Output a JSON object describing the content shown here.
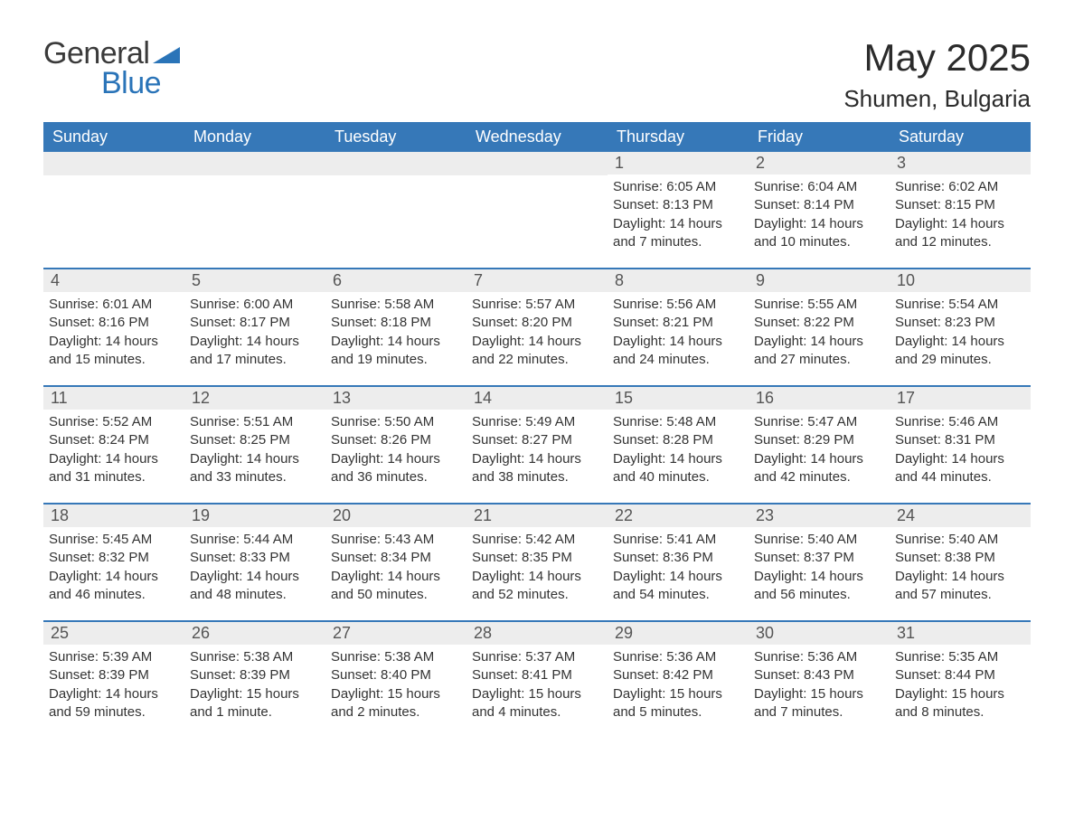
{
  "brand": {
    "part1": "General",
    "part2": "Blue",
    "accent_color": "#2a74b8",
    "text_color": "#3a3a3a"
  },
  "title": "May 2025",
  "location": "Shumen, Bulgaria",
  "colors": {
    "header_bg": "#3678b8",
    "header_text": "#ffffff",
    "daynum_bg": "#ededed",
    "daynum_text": "#555555",
    "body_text": "#333333",
    "week_divider": "#3678b8",
    "page_bg": "#ffffff"
  },
  "days_of_week": [
    "Sunday",
    "Monday",
    "Tuesday",
    "Wednesday",
    "Thursday",
    "Friday",
    "Saturday"
  ],
  "weeks": [
    [
      {
        "n": null
      },
      {
        "n": null
      },
      {
        "n": null
      },
      {
        "n": null
      },
      {
        "n": "1",
        "sunrise": "Sunrise: 6:05 AM",
        "sunset": "Sunset: 8:13 PM",
        "daylight": "Daylight: 14 hours and 7 minutes."
      },
      {
        "n": "2",
        "sunrise": "Sunrise: 6:04 AM",
        "sunset": "Sunset: 8:14 PM",
        "daylight": "Daylight: 14 hours and 10 minutes."
      },
      {
        "n": "3",
        "sunrise": "Sunrise: 6:02 AM",
        "sunset": "Sunset: 8:15 PM",
        "daylight": "Daylight: 14 hours and 12 minutes."
      }
    ],
    [
      {
        "n": "4",
        "sunrise": "Sunrise: 6:01 AM",
        "sunset": "Sunset: 8:16 PM",
        "daylight": "Daylight: 14 hours and 15 minutes."
      },
      {
        "n": "5",
        "sunrise": "Sunrise: 6:00 AM",
        "sunset": "Sunset: 8:17 PM",
        "daylight": "Daylight: 14 hours and 17 minutes."
      },
      {
        "n": "6",
        "sunrise": "Sunrise: 5:58 AM",
        "sunset": "Sunset: 8:18 PM",
        "daylight": "Daylight: 14 hours and 19 minutes."
      },
      {
        "n": "7",
        "sunrise": "Sunrise: 5:57 AM",
        "sunset": "Sunset: 8:20 PM",
        "daylight": "Daylight: 14 hours and 22 minutes."
      },
      {
        "n": "8",
        "sunrise": "Sunrise: 5:56 AM",
        "sunset": "Sunset: 8:21 PM",
        "daylight": "Daylight: 14 hours and 24 minutes."
      },
      {
        "n": "9",
        "sunrise": "Sunrise: 5:55 AM",
        "sunset": "Sunset: 8:22 PM",
        "daylight": "Daylight: 14 hours and 27 minutes."
      },
      {
        "n": "10",
        "sunrise": "Sunrise: 5:54 AM",
        "sunset": "Sunset: 8:23 PM",
        "daylight": "Daylight: 14 hours and 29 minutes."
      }
    ],
    [
      {
        "n": "11",
        "sunrise": "Sunrise: 5:52 AM",
        "sunset": "Sunset: 8:24 PM",
        "daylight": "Daylight: 14 hours and 31 minutes."
      },
      {
        "n": "12",
        "sunrise": "Sunrise: 5:51 AM",
        "sunset": "Sunset: 8:25 PM",
        "daylight": "Daylight: 14 hours and 33 minutes."
      },
      {
        "n": "13",
        "sunrise": "Sunrise: 5:50 AM",
        "sunset": "Sunset: 8:26 PM",
        "daylight": "Daylight: 14 hours and 36 minutes."
      },
      {
        "n": "14",
        "sunrise": "Sunrise: 5:49 AM",
        "sunset": "Sunset: 8:27 PM",
        "daylight": "Daylight: 14 hours and 38 minutes."
      },
      {
        "n": "15",
        "sunrise": "Sunrise: 5:48 AM",
        "sunset": "Sunset: 8:28 PM",
        "daylight": "Daylight: 14 hours and 40 minutes."
      },
      {
        "n": "16",
        "sunrise": "Sunrise: 5:47 AM",
        "sunset": "Sunset: 8:29 PM",
        "daylight": "Daylight: 14 hours and 42 minutes."
      },
      {
        "n": "17",
        "sunrise": "Sunrise: 5:46 AM",
        "sunset": "Sunset: 8:31 PM",
        "daylight": "Daylight: 14 hours and 44 minutes."
      }
    ],
    [
      {
        "n": "18",
        "sunrise": "Sunrise: 5:45 AM",
        "sunset": "Sunset: 8:32 PM",
        "daylight": "Daylight: 14 hours and 46 minutes."
      },
      {
        "n": "19",
        "sunrise": "Sunrise: 5:44 AM",
        "sunset": "Sunset: 8:33 PM",
        "daylight": "Daylight: 14 hours and 48 minutes."
      },
      {
        "n": "20",
        "sunrise": "Sunrise: 5:43 AM",
        "sunset": "Sunset: 8:34 PM",
        "daylight": "Daylight: 14 hours and 50 minutes."
      },
      {
        "n": "21",
        "sunrise": "Sunrise: 5:42 AM",
        "sunset": "Sunset: 8:35 PM",
        "daylight": "Daylight: 14 hours and 52 minutes."
      },
      {
        "n": "22",
        "sunrise": "Sunrise: 5:41 AM",
        "sunset": "Sunset: 8:36 PM",
        "daylight": "Daylight: 14 hours and 54 minutes."
      },
      {
        "n": "23",
        "sunrise": "Sunrise: 5:40 AM",
        "sunset": "Sunset: 8:37 PM",
        "daylight": "Daylight: 14 hours and 56 minutes."
      },
      {
        "n": "24",
        "sunrise": "Sunrise: 5:40 AM",
        "sunset": "Sunset: 8:38 PM",
        "daylight": "Daylight: 14 hours and 57 minutes."
      }
    ],
    [
      {
        "n": "25",
        "sunrise": "Sunrise: 5:39 AM",
        "sunset": "Sunset: 8:39 PM",
        "daylight": "Daylight: 14 hours and 59 minutes."
      },
      {
        "n": "26",
        "sunrise": "Sunrise: 5:38 AM",
        "sunset": "Sunset: 8:39 PM",
        "daylight": "Daylight: 15 hours and 1 minute."
      },
      {
        "n": "27",
        "sunrise": "Sunrise: 5:38 AM",
        "sunset": "Sunset: 8:40 PM",
        "daylight": "Daylight: 15 hours and 2 minutes."
      },
      {
        "n": "28",
        "sunrise": "Sunrise: 5:37 AM",
        "sunset": "Sunset: 8:41 PM",
        "daylight": "Daylight: 15 hours and 4 minutes."
      },
      {
        "n": "29",
        "sunrise": "Sunrise: 5:36 AM",
        "sunset": "Sunset: 8:42 PM",
        "daylight": "Daylight: 15 hours and 5 minutes."
      },
      {
        "n": "30",
        "sunrise": "Sunrise: 5:36 AM",
        "sunset": "Sunset: 8:43 PM",
        "daylight": "Daylight: 15 hours and 7 minutes."
      },
      {
        "n": "31",
        "sunrise": "Sunrise: 5:35 AM",
        "sunset": "Sunset: 8:44 PM",
        "daylight": "Daylight: 15 hours and 8 minutes."
      }
    ]
  ]
}
